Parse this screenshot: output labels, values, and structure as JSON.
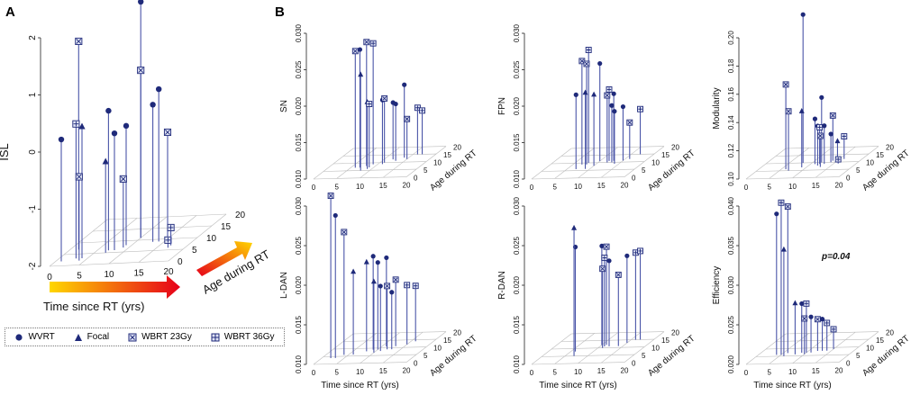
{
  "panels": {
    "a": "A",
    "b": "B"
  },
  "legend": [
    {
      "label": "WVRT",
      "marker": "circle"
    },
    {
      "label": "Focal",
      "marker": "triangle"
    },
    {
      "label": "WBRT 23Gy",
      "marker": "xsquare"
    },
    {
      "label": "WBRT 36Gy",
      "marker": "plussquare"
    }
  ],
  "colors": {
    "stem": "#4a55a8",
    "marker": "#1f2a7a",
    "grid": "#bbbbbb",
    "arrow_start": "#e6001a",
    "arrow_end": "#ffd700"
  },
  "arrows": {
    "time": "Time since RT (yrs)",
    "age": "Age during RT"
  },
  "chart_data": [
    {
      "id": "A",
      "type": "scatter3d-stem",
      "ylabel": "ISL",
      "xlabel": "",
      "zlabel": "",
      "xlim": [
        0,
        20
      ],
      "zlim": [
        0,
        20
      ],
      "ylim": [
        -2,
        2.5
      ],
      "xticks": [
        "0",
        "5",
        "10",
        "15",
        "20"
      ],
      "zticks": [
        "0",
        "5",
        "10",
        "15",
        "20"
      ],
      "yticks": [
        "-2",
        "-1",
        "0",
        "1",
        "2"
      ],
      "points": [
        {
          "x": 1.5,
          "z": 7,
          "y": 2.1,
          "m": "xsquare"
        },
        {
          "x": 1,
          "z": 2,
          "y": 0.4,
          "m": "circle"
        },
        {
          "x": 3,
          "z": 3,
          "y": 0.65,
          "m": "plussquare"
        },
        {
          "x": 4,
          "z": 3,
          "y": 0.6,
          "m": "triangle"
        },
        {
          "x": 4,
          "z": 2,
          "y": -0.35,
          "m": "xsquare"
        },
        {
          "x": 7,
          "z": 5,
          "y": -0.2,
          "m": "triangle"
        },
        {
          "x": 7,
          "z": 6,
          "y": 0.75,
          "m": "circle"
        },
        {
          "x": 8,
          "z": 6,
          "y": 0.3,
          "m": "circle"
        },
        {
          "x": 9,
          "z": 8,
          "y": 0.35,
          "m": "circle"
        },
        {
          "x": 10,
          "z": 11,
          "y": 2.65,
          "m": "circle"
        },
        {
          "x": 10,
          "z": 11,
          "y": 1.3,
          "m": "xsquare"
        },
        {
          "x": 9,
          "z": 7,
          "y": -0.65,
          "m": "xsquare"
        },
        {
          "x": 13,
          "z": 9,
          "y": 0.7,
          "m": "circle"
        },
        {
          "x": 14,
          "z": 9,
          "y": 1.0,
          "m": "circle"
        },
        {
          "x": 15,
          "z": 10,
          "y": 0.1,
          "m": "xsquare"
        },
        {
          "x": 17,
          "z": 6,
          "y": -1.85,
          "m": "plussquare"
        },
        {
          "x": 17,
          "z": 7,
          "y": -1.65,
          "m": "plussquare"
        }
      ]
    },
    {
      "id": "SN",
      "type": "scatter3d-stem",
      "ylabel": "SN",
      "xlabel": "",
      "zlabel": "Age during RT",
      "xlim": [
        0,
        20
      ],
      "zlim": [
        0,
        20
      ],
      "ylim": [
        0.01,
        0.03
      ],
      "xticks": [
        "0",
        "5",
        "10",
        "15",
        "20"
      ],
      "zticks": [
        "0",
        "5",
        "10",
        "15",
        "20"
      ],
      "yticks": [
        "0.010",
        "0.015",
        "0.020",
        "0.025",
        "0.030"
      ],
      "points": [
        {
          "x": 6,
          "z": 7,
          "y": 0.026,
          "m": "xsquare"
        },
        {
          "x": 7,
          "z": 7,
          "y": 0.0262,
          "m": "circle"
        },
        {
          "x": 8,
          "z": 8,
          "y": 0.027,
          "m": "xsquare"
        },
        {
          "x": 9,
          "z": 9,
          "y": 0.0266,
          "m": "plussquare"
        },
        {
          "x": 8,
          "z": 5,
          "y": 0.0232,
          "m": "triangle"
        },
        {
          "x": 9,
          "z": 6,
          "y": 0.0192,
          "m": "triangle"
        },
        {
          "x": 9,
          "z": 7,
          "y": 0.0187,
          "m": "plussquare"
        },
        {
          "x": 11,
          "z": 9,
          "y": 0.0188,
          "m": "circle"
        },
        {
          "x": 11,
          "z": 10,
          "y": 0.0188,
          "m": "xsquare"
        },
        {
          "x": 12,
          "z": 12,
          "y": 0.0178,
          "m": "circle"
        },
        {
          "x": 13,
          "z": 11,
          "y": 0.0178,
          "m": "circle"
        },
        {
          "x": 14,
          "z": 13,
          "y": 0.02,
          "m": "circle"
        },
        {
          "x": 15,
          "z": 12,
          "y": 0.0155,
          "m": "xsquare"
        },
        {
          "x": 16,
          "z": 15,
          "y": 0.0164,
          "m": "plussquare"
        },
        {
          "x": 17,
          "z": 15,
          "y": 0.016,
          "m": "plussquare"
        }
      ]
    },
    {
      "id": "FPN",
      "type": "scatter3d-stem",
      "ylabel": "FPN",
      "xlabel": "",
      "zlabel": "Age during RT",
      "xlim": [
        0,
        20
      ],
      "zlim": [
        0,
        20
      ],
      "ylim": [
        0.01,
        0.03
      ],
      "xticks": [
        "0",
        "5",
        "10",
        "15",
        "20"
      ],
      "zticks": [
        "0",
        "5",
        "10",
        "15",
        "20"
      ],
      "yticks": [
        "0.010",
        "0.015",
        "0.020",
        "0.025",
        "0.030"
      ],
      "points": [
        {
          "x": 7,
          "z": 9,
          "y": 0.0242,
          "m": "xsquare"
        },
        {
          "x": 8,
          "z": 10,
          "y": 0.0255,
          "m": "plussquare"
        },
        {
          "x": 8,
          "z": 9,
          "y": 0.0238,
          "m": "xsquare"
        },
        {
          "x": 10,
          "z": 11,
          "y": 0.0234,
          "m": "circle"
        },
        {
          "x": 7,
          "z": 6,
          "y": 0.0202,
          "m": "circle"
        },
        {
          "x": 9,
          "z": 6,
          "y": 0.0205,
          "m": "triangle"
        },
        {
          "x": 10,
          "z": 8,
          "y": 0.0198,
          "m": "triangle"
        },
        {
          "x": 12,
          "z": 11,
          "y": 0.0198,
          "m": "plussquare"
        },
        {
          "x": 12,
          "z": 10,
          "y": 0.0192,
          "m": "xsquare"
        },
        {
          "x": 13,
          "z": 11,
          "y": 0.0192,
          "m": "circle"
        },
        {
          "x": 13,
          "z": 10,
          "y": 0.0178,
          "m": "circle"
        },
        {
          "x": 14,
          "z": 9,
          "y": 0.0172,
          "m": "circle"
        },
        {
          "x": 15,
          "z": 11,
          "y": 0.0174,
          "m": "circle"
        },
        {
          "x": 16,
          "z": 12,
          "y": 0.015,
          "m": "xsquare"
        },
        {
          "x": 17,
          "z": 15,
          "y": 0.0162,
          "m": "plussquare"
        }
      ]
    },
    {
      "id": "Modularity",
      "type": "scatter3d-stem",
      "ylabel": "Modularity",
      "xlabel": "",
      "zlabel": "Age during RT",
      "xlim": [
        0,
        20
      ],
      "zlim": [
        0,
        20
      ],
      "ylim": [
        0.1,
        0.2
      ],
      "xticks": [
        "0",
        "5",
        "10",
        "15",
        "20"
      ],
      "zticks": [
        "0",
        "5",
        "10",
        "15",
        "20"
      ],
      "yticks": [
        "0.10",
        "0.12",
        "0.14",
        "0.16",
        "0.18",
        "0.20"
      ],
      "points": [
        {
          "x": 8,
          "z": 10,
          "y": 0.205,
          "m": "circle"
        },
        {
          "x": 6,
          "z": 6,
          "y": 0.16,
          "m": "xsquare"
        },
        {
          "x": 7,
          "z": 5,
          "y": 0.142,
          "m": "xsquare"
        },
        {
          "x": 9,
          "z": 7,
          "y": 0.14,
          "m": "triangle"
        },
        {
          "x": 12,
          "z": 10,
          "y": 0.146,
          "m": "circle"
        },
        {
          "x": 11,
          "z": 9,
          "y": 0.132,
          "m": "circle"
        },
        {
          "x": 12,
          "z": 8,
          "y": 0.128,
          "m": "circle"
        },
        {
          "x": 12,
          "z": 9,
          "y": 0.126,
          "m": "plussquare"
        },
        {
          "x": 13,
          "z": 9,
          "y": 0.127,
          "m": "circle"
        },
        {
          "x": 14,
          "z": 11,
          "y": 0.132,
          "m": "xsquare"
        },
        {
          "x": 14,
          "z": 10,
          "y": 0.12,
          "m": "circle"
        },
        {
          "x": 13,
          "z": 7,
          "y": 0.122,
          "m": "xsquare"
        },
        {
          "x": 16,
          "z": 12,
          "y": 0.116,
          "m": "plussquare"
        },
        {
          "x": 15,
          "z": 11,
          "y": 0.114,
          "m": "triangle"
        },
        {
          "x": 16,
          "z": 9,
          "y": 0.103,
          "m": "plussquare"
        }
      ]
    },
    {
      "id": "L-DAN",
      "type": "scatter3d-stem",
      "ylabel": "L-DAN",
      "xlabel": "Time since RT (yrs)",
      "zlabel": "Age during RT",
      "xlim": [
        0,
        20
      ],
      "zlim": [
        0,
        20
      ],
      "ylim": [
        0.01,
        0.03
      ],
      "xticks": [
        "0",
        "5",
        "10",
        "15",
        "20"
      ],
      "zticks": [
        "0",
        "5",
        "10",
        "15",
        "20"
      ],
      "yticks": [
        "0.010",
        "0.015",
        "0.020",
        "0.025",
        "0.030"
      ],
      "points": [
        {
          "x": 2,
          "z": 4,
          "y": 0.0305,
          "m": "xsquare"
        },
        {
          "x": 3,
          "z": 4,
          "y": 0.028,
          "m": "circle"
        },
        {
          "x": 4,
          "z": 6,
          "y": 0.0255,
          "m": "xsquare"
        },
        {
          "x": 6,
          "z": 6,
          "y": 0.0205,
          "m": "triangle"
        },
        {
          "x": 8,
          "z": 8,
          "y": 0.0213,
          "m": "triangle"
        },
        {
          "x": 9,
          "z": 9,
          "y": 0.0218,
          "m": "circle"
        },
        {
          "x": 10,
          "z": 9,
          "y": 0.021,
          "m": "circle"
        },
        {
          "x": 11,
          "z": 11,
          "y": 0.0212,
          "m": "circle"
        },
        {
          "x": 10,
          "z": 7,
          "y": 0.019,
          "m": "triangle"
        },
        {
          "x": 11,
          "z": 8,
          "y": 0.0182,
          "m": "circle"
        },
        {
          "x": 12,
          "z": 9,
          "y": 0.018,
          "m": "xsquare"
        },
        {
          "x": 13,
          "z": 11,
          "y": 0.0184,
          "m": "xsquare"
        },
        {
          "x": 13,
          "z": 9,
          "y": 0.0172,
          "m": "circle"
        },
        {
          "x": 15,
          "z": 12,
          "y": 0.0175,
          "m": "plussquare"
        },
        {
          "x": 16,
          "z": 14,
          "y": 0.017,
          "m": "plussquare"
        }
      ]
    },
    {
      "id": "R-DAN",
      "type": "scatter3d-stem",
      "ylabel": "R-DAN",
      "xlabel": "Time since RT (yrs)",
      "zlabel": "Age during RT",
      "xlim": [
        0,
        20
      ],
      "zlim": [
        0,
        20
      ],
      "ylim": [
        0.01,
        0.03
      ],
      "xticks": [
        "0",
        "5",
        "10",
        "15",
        "20"
      ],
      "zticks": [
        "0",
        "5",
        "10",
        "15",
        "20"
      ],
      "yticks": [
        "0.010",
        "0.015",
        "0.020",
        "0.025",
        "0.030"
      ],
      "points": [
        {
          "x": 6,
          "z": 8,
          "y": 0.0232,
          "m": "circle"
        },
        {
          "x": 7,
          "z": 5,
          "y": 0.0262,
          "m": "triangle"
        },
        {
          "x": 10,
          "z": 12,
          "y": 0.0225,
          "m": "circle"
        },
        {
          "x": 11,
          "z": 12,
          "y": 0.0224,
          "m": "xsquare"
        },
        {
          "x": 11,
          "z": 11,
          "y": 0.0212,
          "m": "plussquare"
        },
        {
          "x": 12,
          "z": 11,
          "y": 0.0208,
          "m": "circle"
        },
        {
          "x": 11,
          "z": 10,
          "y": 0.02,
          "m": "xsquare"
        },
        {
          "x": 14,
          "z": 11,
          "y": 0.019,
          "m": "xsquare"
        },
        {
          "x": 16,
          "z": 15,
          "y": 0.021,
          "m": "plussquare"
        },
        {
          "x": 17,
          "z": 15,
          "y": 0.0212,
          "m": "plussquare"
        },
        {
          "x": 15,
          "z": 13,
          "y": 0.021,
          "m": "circle"
        }
      ]
    },
    {
      "id": "Efficiency",
      "type": "scatter3d-stem",
      "ylabel": "Efficiency",
      "xlabel": "Time since RT (yrs)",
      "zlabel": "Age during RT",
      "xlim": [
        0,
        20
      ],
      "zlim": [
        0,
        20
      ],
      "ylim": [
        0.02,
        0.04
      ],
      "xticks": [
        "0",
        "5",
        "10",
        "15",
        "20"
      ],
      "zticks": [
        "0",
        "5",
        "10",
        "15",
        "20"
      ],
      "yticks": [
        "0.020",
        "0.025",
        "0.030",
        "0.035",
        "0.040"
      ],
      "annotation": "p=0.04",
      "points": [
        {
          "x": 4,
          "z": 6,
          "y": 0.0378,
          "m": "circle"
        },
        {
          "x": 5,
          "z": 6,
          "y": 0.0392,
          "m": "plussquare"
        },
        {
          "x": 6,
          "z": 7,
          "y": 0.0385,
          "m": "xsquare"
        },
        {
          "x": 6,
          "z": 5,
          "y": 0.0335,
          "m": "triangle"
        },
        {
          "x": 8,
          "z": 6,
          "y": 0.0265,
          "m": "triangle"
        },
        {
          "x": 9,
          "z": 7,
          "y": 0.0262,
          "m": "circle"
        },
        {
          "x": 10,
          "z": 7,
          "y": 0.0262,
          "m": "plussquare"
        },
        {
          "x": 10,
          "z": 6,
          "y": 0.0245,
          "m": "xsquare"
        },
        {
          "x": 11,
          "z": 7,
          "y": 0.0245,
          "m": "circle"
        },
        {
          "x": 12,
          "z": 8,
          "y": 0.024,
          "m": "xsquare"
        },
        {
          "x": 13,
          "z": 8,
          "y": 0.024,
          "m": "circle"
        },
        {
          "x": 14,
          "z": 8,
          "y": 0.0235,
          "m": "plussquare"
        },
        {
          "x": 15,
          "z": 9,
          "y": 0.0225,
          "m": "plussquare"
        }
      ]
    }
  ]
}
